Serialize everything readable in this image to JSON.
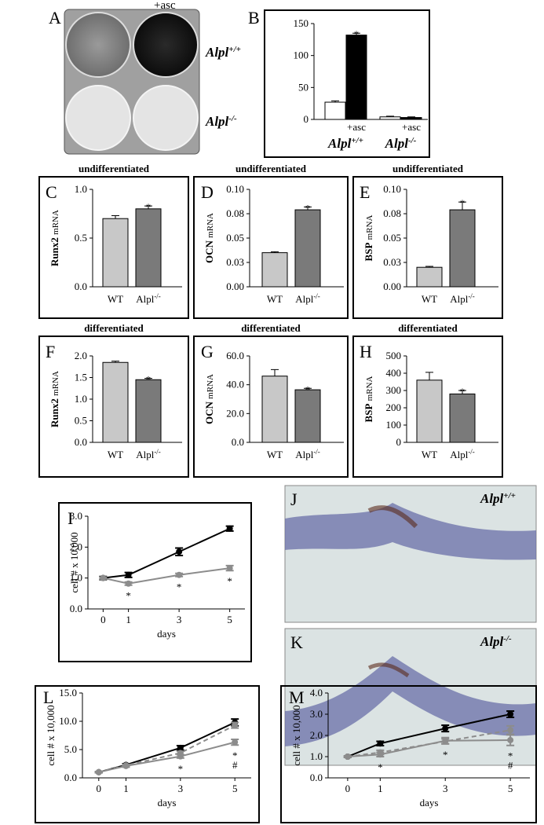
{
  "photos": {
    "A": {
      "panel": "A",
      "top_label": "+asc",
      "rows": [
        {
          "base": "Alpl",
          "sup": "+/+"
        },
        {
          "base": "Alpl",
          "sup": "-/-"
        }
      ]
    },
    "J": {
      "panel": "J",
      "label": {
        "base": "Alpl",
        "sup": "+/+"
      }
    },
    "K": {
      "panel": "K",
      "label": {
        "base": "Alpl",
        "sup": "-/-"
      }
    }
  },
  "chart_data": [
    {
      "type": "bar",
      "panel": "B",
      "values": [
        27,
        132,
        4,
        3
      ],
      "errors": [
        2,
        3,
        1,
        1
      ],
      "colors": [
        "#ffffff",
        "#000000",
        "#ffffff",
        "#000000"
      ],
      "categories": [
        null,
        "+asc",
        null,
        "+asc"
      ],
      "groups": [
        {
          "base": "Alpl",
          "sup": "+/+"
        },
        {
          "base": "Alpl",
          "sup": "-/-"
        }
      ],
      "ylim": [
        0,
        150
      ],
      "yticks": [
        0,
        50,
        100,
        150
      ],
      "annotations": [
        {
          "text": "*",
          "index": 1
        }
      ]
    },
    {
      "type": "bar",
      "panel": "C",
      "title": "undifferentiated",
      "ylabel": {
        "gene": "Runx2",
        "unit": "mRNA"
      },
      "categories": [
        "WT",
        "Alpl"
      ],
      "superscripts": [
        null,
        "-/-"
      ],
      "values": [
        0.7,
        0.8
      ],
      "errors": [
        0.03,
        0.03
      ],
      "colors": [
        "#c8c8c8",
        "#7a7a7a"
      ],
      "ylim": [
        0,
        1.0
      ],
      "yticks": [
        {
          "value": 0,
          "label": "0.0"
        },
        {
          "value": 0.5,
          "label": "0.5"
        },
        {
          "value": 1.0,
          "label": "1.0"
        }
      ],
      "annotations": [
        {
          "text": "*",
          "index": 1
        }
      ]
    },
    {
      "type": "bar",
      "panel": "D",
      "title": "undifferentiated",
      "ylabel": {
        "gene": "OCN",
        "unit": "mRNA"
      },
      "categories": [
        "WT",
        "Alpl"
      ],
      "superscripts": [
        null,
        "-/-"
      ],
      "values": [
        0.035,
        0.079
      ],
      "errors": [
        0.001,
        0.003
      ],
      "colors": [
        "#c8c8c8",
        "#7a7a7a"
      ],
      "ylim": [
        0,
        0.1
      ],
      "yticks": [
        {
          "value": 0,
          "label": "0.00"
        },
        {
          "value": 0.025,
          "label": "0.03"
        },
        {
          "value": 0.05,
          "label": "0.05"
        },
        {
          "value": 0.075,
          "label": "0.08"
        },
        {
          "value": 0.1,
          "label": "0.10"
        }
      ],
      "annotations": [
        {
          "text": "*",
          "index": 1
        }
      ]
    },
    {
      "type": "bar",
      "panel": "E",
      "title": "undifferentiated",
      "ylabel": {
        "gene": "BSP",
        "unit": "mRNA"
      },
      "categories": [
        "WT",
        "Alpl"
      ],
      "superscripts": [
        null,
        "-/-"
      ],
      "values": [
        0.02,
        0.079
      ],
      "errors": [
        0.001,
        0.008
      ],
      "colors": [
        "#c8c8c8",
        "#7a7a7a"
      ],
      "ylim": [
        0,
        0.1
      ],
      "yticks": [
        {
          "value": 0,
          "label": "0.00"
        },
        {
          "value": 0.025,
          "label": "0.03"
        },
        {
          "value": 0.05,
          "label": "0.05"
        },
        {
          "value": 0.075,
          "label": "0.08"
        },
        {
          "value": 0.1,
          "label": "0.10"
        }
      ],
      "annotations": [
        {
          "text": "*",
          "index": 1
        }
      ]
    },
    {
      "type": "bar",
      "panel": "F",
      "title": "differentiated",
      "ylabel": {
        "gene": "Runx2",
        "unit": "mRNA"
      },
      "categories": [
        "WT",
        "Alpl"
      ],
      "superscripts": [
        null,
        "-/-"
      ],
      "values": [
        1.85,
        1.45
      ],
      "errors": [
        0.03,
        0.03
      ],
      "colors": [
        "#c8c8c8",
        "#7a7a7a"
      ],
      "ylim": [
        0,
        2.0
      ],
      "yticks": [
        {
          "value": 0,
          "label": "0.0"
        },
        {
          "value": 0.5,
          "label": "0.5"
        },
        {
          "value": 1.0,
          "label": "1.0"
        },
        {
          "value": 1.5,
          "label": "1.5"
        },
        {
          "value": 2.0,
          "label": "2.0"
        }
      ],
      "annotations": [
        {
          "text": "*",
          "index": 1
        }
      ]
    },
    {
      "type": "bar",
      "panel": "G",
      "title": "differentiated",
      "ylabel": {
        "gene": "OCN",
        "unit": "mRNA"
      },
      "categories": [
        "WT",
        "Alpl"
      ],
      "superscripts": [
        null,
        "-/-"
      ],
      "values": [
        46,
        36.5
      ],
      "errors": [
        4.5,
        1
      ],
      "colors": [
        "#c8c8c8",
        "#7a7a7a"
      ],
      "ylim": [
        0,
        60
      ],
      "yticks": [
        {
          "value": 0,
          "label": "0.0"
        },
        {
          "value": 20,
          "label": "20.0"
        },
        {
          "value": 40,
          "label": "40.0"
        },
        {
          "value": 60,
          "label": "60.0"
        }
      ],
      "annotations": [
        {
          "text": "*",
          "index": 1
        }
      ]
    },
    {
      "type": "bar",
      "panel": "H",
      "title": "differentiated",
      "ylabel": {
        "gene": "BSP",
        "unit": "mRNA"
      },
      "categories": [
        "WT",
        "Alpl"
      ],
      "superscripts": [
        null,
        "-/-"
      ],
      "values": [
        360,
        280
      ],
      "errors": [
        45,
        20
      ],
      "colors": [
        "#c8c8c8",
        "#7a7a7a"
      ],
      "ylim": [
        0,
        500
      ],
      "yticks": [
        0,
        100,
        200,
        300,
        400,
        500
      ],
      "annotations": [
        {
          "text": "*",
          "index": 1
        }
      ]
    },
    {
      "type": "line",
      "panel": "I",
      "xlabel": "days",
      "ylabel": "cell # x 10,000",
      "x": [
        0,
        1,
        3,
        5
      ],
      "xlim": [
        -0.6,
        5.6
      ],
      "xticks": [
        0,
        1,
        3,
        5
      ],
      "ylim": [
        0,
        3.0
      ],
      "yticks": [
        {
          "value": 0,
          "label": "0.0"
        },
        {
          "value": 1,
          "label": "1.0"
        },
        {
          "value": 2,
          "label": "2.0"
        },
        {
          "value": 3,
          "label": "3.0"
        }
      ],
      "series": [
        {
          "color": "#000000",
          "dashed": false,
          "values": [
            1.0,
            1.1,
            1.85,
            2.6
          ],
          "errors": [
            0.05,
            0.08,
            0.12,
            0.08
          ]
        },
        {
          "color": "#8c8c8c",
          "dashed": false,
          "values": [
            1.0,
            0.82,
            1.1,
            1.32
          ],
          "errors": [
            0.03,
            0.05,
            0.05,
            0.08
          ]
        }
      ],
      "annotations": [
        {
          "text": "*",
          "x": 1
        },
        {
          "text": "*",
          "x": 3
        },
        {
          "text": "*",
          "x": 5
        }
      ]
    },
    {
      "type": "line",
      "panel": "L",
      "xlabel": "days",
      "ylabel": "cell # x 10,000",
      "x": [
        0,
        1,
        3,
        5
      ],
      "xlim": [
        -0.6,
        5.6
      ],
      "xticks": [
        0,
        1,
        3,
        5
      ],
      "ylim": [
        0,
        15
      ],
      "yticks": [
        {
          "value": 0,
          "label": "0.0"
        },
        {
          "value": 5,
          "label": "5.0"
        },
        {
          "value": 10,
          "label": "10.0"
        },
        {
          "value": 15,
          "label": "15.0"
        }
      ],
      "series": [
        {
          "color": "#000000",
          "dashed": false,
          "values": [
            1.0,
            2.3,
            5.3,
            9.8
          ],
          "errors": [
            0.1,
            0.2,
            0.4,
            0.6
          ]
        },
        {
          "color": "#8c8c8c",
          "dashed": true,
          "values": [
            1.0,
            2.2,
            4.4,
            9.3
          ],
          "errors": [
            0.1,
            0.2,
            0.3,
            0.5
          ]
        },
        {
          "color": "#8c8c8c",
          "dashed": false,
          "values": [
            1.0,
            2.1,
            3.8,
            6.3
          ],
          "errors": [
            0.1,
            0.2,
            0.3,
            0.5
          ]
        }
      ],
      "annotations": [
        {
          "text": "*",
          "x": 3
        },
        {
          "text": "*",
          "x": 5
        },
        {
          "text": "#",
          "x": 5
        }
      ]
    },
    {
      "type": "line",
      "panel": "M",
      "xlabel": "days",
      "ylabel": "cell # x 10,000",
      "x": [
        0,
        1,
        3,
        5
      ],
      "xlim": [
        -0.6,
        5.6
      ],
      "xticks": [
        0,
        1,
        3,
        5
      ],
      "ylim": [
        0,
        4.0
      ],
      "yticks": [
        {
          "value": 0,
          "label": "0.0"
        },
        {
          "value": 1,
          "label": "1.0"
        },
        {
          "value": 2,
          "label": "2.0"
        },
        {
          "value": 3,
          "label": "3.0"
        },
        {
          "value": 4,
          "label": "4.0"
        }
      ],
      "series": [
        {
          "color": "#000000",
          "dashed": false,
          "values": [
            1.0,
            1.62,
            2.33,
            3.0
          ],
          "errors": [
            0.03,
            0.1,
            0.15,
            0.15
          ]
        },
        {
          "color": "#8c8c8c",
          "dashed": true,
          "values": [
            1.0,
            1.2,
            1.72,
            2.25
          ],
          "errors": [
            0.03,
            0.1,
            0.12,
            0.2
          ]
        },
        {
          "color": "#8c8c8c",
          "dashed": false,
          "values": [
            1.0,
            1.1,
            1.75,
            1.78
          ],
          "errors": [
            0.03,
            0.1,
            0.15,
            0.25
          ]
        }
      ],
      "annotations": [
        {
          "text": "*",
          "x": 1
        },
        {
          "text": "*",
          "x": 3
        },
        {
          "text": "*",
          "x": 5
        },
        {
          "text": "#",
          "x": 5
        }
      ]
    }
  ]
}
